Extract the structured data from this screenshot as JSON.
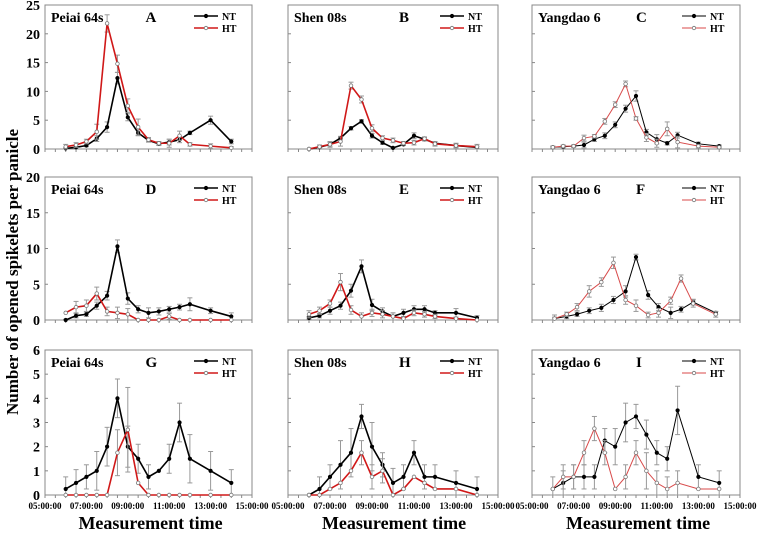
{
  "y_axis_label": "Number of opened spikelets per panicle",
  "x_axis_label": "Measurement time",
  "colors": {
    "NT": "#000000",
    "HT": "#d01818",
    "HT_light": "#d84a4a"
  },
  "chart_data": [
    {
      "type": "line",
      "panel": "A",
      "cultivar": "Peiai 64s",
      "ylim": [
        0,
        25
      ],
      "yticks": [
        0,
        5,
        10,
        15,
        20,
        25
      ],
      "xlim": [
        "05:00:00",
        "15:00:00"
      ],
      "legend": "top-right",
      "x": [
        "06:00",
        "06:30",
        "07:00",
        "07:30",
        "08:00",
        "08:30",
        "09:00",
        "09:30",
        "10:00",
        "10:30",
        "11:00",
        "11:30",
        "12:00",
        "13:00",
        "14:00"
      ],
      "series": [
        {
          "name": "NT",
          "values": [
            0.1,
            0.3,
            0.6,
            1.8,
            3.8,
            12.3,
            5.5,
            2.8,
            1.5,
            0.9,
            1.2,
            1.6,
            2.8,
            5.0,
            1.3
          ],
          "err": [
            0.1,
            0.2,
            0.2,
            0.5,
            0.9,
            1.0,
            0.6,
            0.5,
            0.3,
            0.3,
            0.5,
            0.5,
            0.3,
            0.7,
            0.4
          ]
        },
        {
          "name": "HT",
          "values": [
            0.4,
            0.7,
            1.3,
            3.0,
            21.8,
            14.8,
            7.5,
            3.8,
            1.6,
            1.0,
            1.0,
            2.3,
            0.8,
            0.5,
            0.2
          ],
          "err": [
            0.4,
            0.4,
            0.4,
            1.3,
            1.5,
            1.5,
            1.2,
            1.4,
            0.4,
            0.3,
            0.7,
            0.8,
            0.3,
            0.4,
            0.2
          ]
        }
      ]
    },
    {
      "type": "line",
      "panel": "B",
      "cultivar": "Shen 08s",
      "ylim": [
        0,
        25
      ],
      "yticks": [
        0,
        5,
        10,
        15,
        20,
        25
      ],
      "xlim": [
        "05:00:00",
        "15:00:00"
      ],
      "legend": "top-right",
      "x": [
        "06:00",
        "06:30",
        "07:00",
        "07:30",
        "08:00",
        "08:30",
        "09:00",
        "09:30",
        "10:00",
        "10:30",
        "11:00",
        "11:30",
        "12:00",
        "13:00",
        "14:00"
      ],
      "series": [
        {
          "name": "NT",
          "values": [
            0,
            0.3,
            0.8,
            1.9,
            3.6,
            4.8,
            2.3,
            1.1,
            0.2,
            0.8,
            2.3,
            1.7,
            1.0,
            0.6,
            0.3
          ],
          "err": [
            0,
            0.1,
            0.3,
            0.3,
            0.3,
            0.3,
            0.4,
            0.3,
            0.1,
            0.2,
            0.5,
            0.3,
            0.3,
            0.3,
            0.2
          ]
        },
        {
          "name": "HT",
          "values": [
            0,
            0.4,
            0.8,
            1.3,
            11.0,
            8.6,
            3.6,
            1.9,
            1.5,
            1.0,
            1.1,
            1.8,
            0.9,
            0.6,
            0.4
          ],
          "err": [
            0,
            0.3,
            0.5,
            0.8,
            0.6,
            0.6,
            0.6,
            0.4,
            0.4,
            0.3,
            0.4,
            0.3,
            0.4,
            0.4,
            0.4
          ]
        }
      ]
    },
    {
      "type": "line",
      "panel": "C",
      "cultivar": "Yangdao 6",
      "ylim": [
        0,
        25
      ],
      "yticks": [
        0,
        5,
        10,
        15,
        20,
        25
      ],
      "xlim": [
        "05:00:00",
        "15:00:00"
      ],
      "legend": "top-right",
      "x": [
        "06:00",
        "06:30",
        "07:00",
        "07:30",
        "08:00",
        "08:30",
        "09:00",
        "09:30",
        "10:00",
        "10:30",
        "11:00",
        "11:30",
        "12:00",
        "13:00",
        "14:00"
      ],
      "series": [
        {
          "name": "NT",
          "values": [
            0.3,
            0.4,
            0.5,
            0.7,
            1.7,
            2.3,
            4.2,
            7.0,
            9.2,
            2.9,
            1.7,
            1.0,
            2.4,
            0.9,
            0.5
          ],
          "err": [
            0.2,
            0.2,
            0.2,
            0.5,
            0.4,
            0.5,
            0.5,
            0.6,
            0.9,
            0.5,
            0.8,
            0.3,
            0.5,
            0.3,
            0.2
          ]
        },
        {
          "name": "HT",
          "values": [
            0.3,
            0.5,
            0.5,
            1.9,
            2.2,
            4.8,
            7.7,
            11.3,
            5.3,
            2.0,
            1.0,
            3.5,
            1.2,
            0.5,
            0.3
          ],
          "err": [
            0.2,
            0.2,
            0.2,
            0.5,
            0.3,
            0.5,
            0.5,
            0.5,
            0.3,
            0.7,
            0.7,
            1.2,
            1.0,
            0.3,
            0.2
          ]
        }
      ]
    },
    {
      "type": "line",
      "panel": "D",
      "cultivar": "Peiai 64s",
      "ylim": [
        0,
        20
      ],
      "yticks": [
        0,
        5,
        10,
        15,
        20
      ],
      "xlim": [
        "05:00:00",
        "15:00:00"
      ],
      "legend": "top-right",
      "x": [
        "06:00",
        "06:30",
        "07:00",
        "07:30",
        "08:00",
        "08:30",
        "09:00",
        "09:30",
        "10:00",
        "10:30",
        "11:00",
        "11:30",
        "12:00",
        "13:00",
        "14:00"
      ],
      "series": [
        {
          "name": "NT",
          "values": [
            0,
            0.6,
            0.8,
            2.0,
            3.4,
            10.3,
            3.0,
            1.5,
            1.0,
            1.2,
            1.5,
            1.8,
            2.2,
            1.3,
            0.5
          ],
          "err": [
            0.1,
            0.3,
            0.3,
            0.5,
            0.6,
            0.9,
            0.8,
            0.5,
            0.7,
            0.5,
            0.4,
            0.4,
            0.9,
            0.4,
            0.5
          ]
        },
        {
          "name": "HT",
          "values": [
            1.0,
            1.8,
            2.0,
            3.7,
            1.2,
            1.0,
            0.8,
            0,
            0,
            0,
            0.5,
            0,
            0,
            0,
            0
          ],
          "err": [
            0,
            0.8,
            0.8,
            0.9,
            0.6,
            0.8,
            0.8,
            0,
            0,
            0,
            0.4,
            0,
            0,
            0,
            0
          ]
        }
      ]
    },
    {
      "type": "line",
      "panel": "E",
      "cultivar": "Shen 08s",
      "ylim": [
        0,
        20
      ],
      "yticks": [
        0,
        5,
        10,
        15,
        20
      ],
      "xlim": [
        "05:00:00",
        "15:00:00"
      ],
      "legend": "top-right",
      "x": [
        "06:00",
        "06:30",
        "07:00",
        "07:30",
        "08:00",
        "08:30",
        "09:00",
        "09:30",
        "10:00",
        "10:30",
        "11:00",
        "11:30",
        "12:00",
        "13:00",
        "14:00"
      ],
      "series": [
        {
          "name": "NT",
          "values": [
            0.3,
            0.6,
            1.3,
            2.0,
            4.1,
            7.5,
            2.1,
            1.2,
            0.5,
            1.0,
            1.5,
            1.5,
            1.0,
            1.0,
            0.3
          ],
          "err": [
            0.2,
            0.3,
            0.5,
            0.5,
            0.9,
            0.9,
            0.8,
            0.5,
            0.5,
            0.5,
            0.5,
            0.5,
            0.3,
            0.6,
            0.3
          ]
        },
        {
          "name": "HT",
          "values": [
            0.8,
            1.3,
            2.3,
            5.3,
            1.4,
            0.5,
            1.0,
            0.8,
            0.5,
            0.2,
            1.0,
            0.8,
            0.5,
            0.2,
            0
          ],
          "err": [
            0.5,
            0.5,
            0.5,
            1.2,
            0.6,
            0.5,
            0.5,
            0.5,
            0.5,
            0.2,
            0.4,
            0.4,
            0.3,
            0.2,
            0
          ]
        }
      ]
    },
    {
      "type": "line",
      "panel": "F",
      "cultivar": "Yangdao 6",
      "ylim": [
        0,
        20
      ],
      "yticks": [
        0,
        5,
        10,
        15,
        20
      ],
      "xlim": [
        "05:00:00",
        "15:00:00"
      ],
      "legend": "top-right",
      "x": [
        "06:05",
        "06:40",
        "07:10",
        "07:45",
        "08:20",
        "08:55",
        "09:30",
        "10:00",
        "10:35",
        "11:05",
        "11:40",
        "12:10",
        "12:45",
        "13:50"
      ],
      "series": [
        {
          "name": "NT",
          "values": [
            0.2,
            0.5,
            0.8,
            1.3,
            1.7,
            2.8,
            4.0,
            8.8,
            3.5,
            1.8,
            1.0,
            1.5,
            2.5,
            1.0
          ],
          "err": [
            0.5,
            0.3,
            0.3,
            0.4,
            0.5,
            0.5,
            0.8,
            0.4,
            0.6,
            0.5,
            0.8,
            0.4,
            0.4,
            0.2
          ]
        },
        {
          "name": "HT",
          "values": [
            0.2,
            0.8,
            1.8,
            4.0,
            5.3,
            8.0,
            2.8,
            2.0,
            0.7,
            1.0,
            2.7,
            5.8,
            2.3,
            0.8
          ],
          "err": [
            0.2,
            0.3,
            0.5,
            0.8,
            0.6,
            0.8,
            0.6,
            0.8,
            0.4,
            0.6,
            0.5,
            0.5,
            0.5,
            0.4
          ]
        }
      ]
    },
    {
      "type": "line",
      "panel": "G",
      "cultivar": "Peiai 64s",
      "ylim": [
        0,
        6
      ],
      "yticks": [
        0,
        1,
        2,
        3,
        4,
        5,
        6
      ],
      "xlim": [
        "05:00:00",
        "15:00:00"
      ],
      "legend": "top-right",
      "xticks": [
        "05:00:00",
        "07:00:00",
        "09:00:00",
        "11:00:00",
        "13:00:00",
        "15:00:00"
      ],
      "x": [
        "06:00",
        "06:30",
        "07:00",
        "07:30",
        "08:00",
        "08:30",
        "09:00",
        "09:30",
        "10:00",
        "10:30",
        "11:00",
        "11:30",
        "12:00",
        "13:00",
        "14:00"
      ],
      "series": [
        {
          "name": "NT",
          "values": [
            0.25,
            0.5,
            0.75,
            1.0,
            2.0,
            4.0,
            2.0,
            1.5,
            0.75,
            1.0,
            1.5,
            3.0,
            1.5,
            1.0,
            0.5
          ],
          "err": [
            0.5,
            0.55,
            0.5,
            0.8,
            0.8,
            0.8,
            0.85,
            0.6,
            0.5,
            0,
            0.6,
            0.8,
            1.0,
            0.8,
            0.55
          ]
        },
        {
          "name": "HT",
          "values": [
            0,
            0,
            0,
            0,
            0,
            1.75,
            2.7,
            0.5,
            0,
            0,
            0,
            0,
            0,
            0,
            0
          ],
          "err": [
            0,
            0,
            0,
            0,
            0,
            0.95,
            1.75,
            0,
            0,
            0,
            0,
            0,
            0,
            0,
            0
          ]
        }
      ]
    },
    {
      "type": "line",
      "panel": "H",
      "cultivar": "Shen 08s",
      "ylim": [
        0,
        6
      ],
      "yticks": [
        0,
        1,
        2,
        3,
        4,
        5,
        6
      ],
      "xlim": [
        "05:00:00",
        "15:00:00"
      ],
      "legend": "top-right",
      "xticks": [
        "05:00:00",
        "07:00:00",
        "09:00:00",
        "11:00:00",
        "13:00:00",
        "15:00:00"
      ],
      "x": [
        "06:00",
        "06:30",
        "07:00",
        "07:30",
        "08:00",
        "08:30",
        "09:00",
        "09:30",
        "10:00",
        "10:30",
        "11:00",
        "11:30",
        "12:00",
        "13:00",
        "14:00"
      ],
      "series": [
        {
          "name": "NT",
          "values": [
            0,
            0.25,
            0.75,
            1.25,
            1.75,
            3.25,
            2.0,
            1.25,
            0.5,
            0.75,
            1.75,
            0.75,
            0.75,
            0.5,
            0.25
          ],
          "err": [
            0,
            0.5,
            0.5,
            1.0,
            1.0,
            0.5,
            1.0,
            0.5,
            0.6,
            0.5,
            0.5,
            0.5,
            0.5,
            0.5,
            0.5
          ]
        },
        {
          "name": "HT",
          "values": [
            0,
            0,
            0.25,
            0.5,
            1.0,
            1.75,
            0.75,
            1.0,
            0,
            0.25,
            0.75,
            0.5,
            0.25,
            0.25,
            0
          ],
          "err": [
            0,
            0,
            0,
            0,
            0,
            0.5,
            0.5,
            0.5,
            0,
            0,
            0,
            0,
            0,
            0,
            0
          ]
        }
      ]
    },
    {
      "type": "line",
      "panel": "I",
      "cultivar": "Yangdao 6",
      "ylim": [
        0,
        6
      ],
      "yticks": [
        0,
        1,
        2,
        3,
        4,
        5,
        6
      ],
      "xlim": [
        "05:00:00",
        "15:00:00"
      ],
      "legend": "top-right",
      "xticks": [
        "05:00:00",
        "07:00:00",
        "09:00:00",
        "11:00:00",
        "13:00:00",
        "15:00:00"
      ],
      "x": [
        "06:00",
        "06:30",
        "07:00",
        "07:30",
        "08:00",
        "08:30",
        "09:00",
        "09:30",
        "10:00",
        "10:30",
        "11:00",
        "11:30",
        "12:00",
        "13:00",
        "14:00"
      ],
      "series": [
        {
          "name": "NT",
          "values": [
            0.25,
            0.5,
            0.75,
            0.75,
            0.75,
            2.25,
            2.0,
            3.0,
            3.25,
            2.5,
            1.75,
            1.5,
            3.5,
            0.75,
            0.5
          ],
          "err": [
            0.5,
            0.5,
            0.5,
            0.5,
            0.5,
            0.5,
            0.75,
            0.8,
            0.5,
            0.6,
            0.5,
            0.5,
            1.0,
            0.5,
            0.5
          ]
        },
        {
          "name": "HT",
          "values": [
            0.25,
            0.75,
            0.75,
            1.75,
            2.75,
            1.75,
            0.25,
            0.75,
            1.75,
            1.0,
            0.5,
            0.25,
            0.5,
            0.25,
            0.25
          ],
          "err": [
            0,
            0.5,
            0.5,
            0.5,
            0.5,
            0.5,
            0,
            0.5,
            0.5,
            0.75,
            0.5,
            0.5,
            0.5,
            0,
            0
          ]
        }
      ]
    }
  ]
}
